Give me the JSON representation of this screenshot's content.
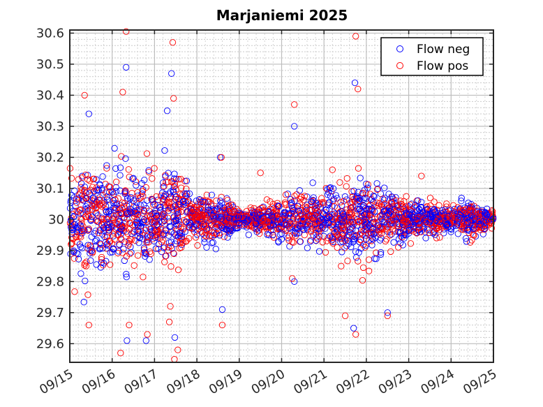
{
  "chart_data": {
    "type": "scatter",
    "title": "Marjaniemi 2025",
    "xlabel": "",
    "ylabel": "",
    "x_tick_labels": [
      "09/15",
      "09/16",
      "09/17",
      "09/18",
      "09/19",
      "09/20",
      "09/21",
      "09/22",
      "09/23",
      "09/24",
      "09/25"
    ],
    "x_ticks_days": [
      15,
      16,
      17,
      18,
      19,
      20,
      21,
      22,
      23,
      24,
      25
    ],
    "xlim_days": [
      15,
      25
    ],
    "y_tick_labels": [
      "29.6",
      "29.7",
      "29.8",
      "29.9",
      "30",
      "30.1",
      "30.2",
      "30.3",
      "30.4",
      "30.5",
      "30.6"
    ],
    "y_ticks": [
      29.6,
      29.7,
      29.8,
      29.9,
      30.0,
      30.1,
      30.2,
      30.3,
      30.4,
      30.5,
      30.6
    ],
    "ylim": [
      29.54,
      30.61
    ],
    "grid": true,
    "minor_grid": true,
    "legend_position": "top-right",
    "marker": "open-circle",
    "mean_value": 30.0,
    "series": [
      {
        "name": "Flow neg",
        "color": "#0000ff"
      },
      {
        "name": "Flow pos",
        "color": "#ff0000"
      }
    ],
    "spread_profile": {
      "day": [
        15.0,
        15.5,
        16.0,
        16.3,
        16.5,
        17.0,
        17.3,
        17.5,
        18.0,
        18.5,
        19.0,
        19.5,
        20.0,
        20.5,
        21.0,
        21.5,
        22.0,
        22.5,
        23.0,
        23.5,
        24.0,
        24.5,
        25.0
      ],
      "std": [
        0.06,
        0.09,
        0.07,
        0.095,
        0.08,
        0.06,
        0.09,
        0.07,
        0.035,
        0.04,
        0.012,
        0.022,
        0.03,
        0.04,
        0.035,
        0.055,
        0.06,
        0.045,
        0.03,
        0.025,
        0.018,
        0.03,
        0.012
      ]
    },
    "outliers": [
      {
        "series": "Flow pos",
        "x_day": 16.33,
        "y": 30.605
      },
      {
        "series": "Flow pos",
        "x_day": 17.43,
        "y": 30.57
      },
      {
        "series": "Flow pos",
        "x_day": 21.75,
        "y": 30.59
      },
      {
        "series": "Flow neg",
        "x_day": 16.33,
        "y": 30.49
      },
      {
        "series": "Flow neg",
        "x_day": 17.4,
        "y": 30.47
      },
      {
        "series": "Flow neg",
        "x_day": 21.73,
        "y": 30.44
      },
      {
        "series": "Flow pos",
        "x_day": 15.35,
        "y": 30.4
      },
      {
        "series": "Flow pos",
        "x_day": 16.25,
        "y": 30.41
      },
      {
        "series": "Flow pos",
        "x_day": 17.45,
        "y": 30.39
      },
      {
        "series": "Flow pos",
        "x_day": 21.8,
        "y": 30.42
      },
      {
        "series": "Flow pos",
        "x_day": 20.3,
        "y": 30.37
      },
      {
        "series": "Flow neg",
        "x_day": 20.3,
        "y": 30.3
      },
      {
        "series": "Flow neg",
        "x_day": 15.45,
        "y": 30.34
      },
      {
        "series": "Flow neg",
        "x_day": 17.3,
        "y": 30.35
      },
      {
        "series": "Flow pos",
        "x_day": 16.2,
        "y": 29.57
      },
      {
        "series": "Flow neg",
        "x_day": 16.35,
        "y": 29.61
      },
      {
        "series": "Flow pos",
        "x_day": 17.47,
        "y": 29.55
      },
      {
        "series": "Flow neg",
        "x_day": 17.48,
        "y": 29.62
      },
      {
        "series": "Flow pos",
        "x_day": 17.55,
        "y": 29.58
      },
      {
        "series": "Flow neg",
        "x_day": 16.8,
        "y": 29.61
      },
      {
        "series": "Flow pos",
        "x_day": 16.83,
        "y": 29.63
      },
      {
        "series": "Flow pos",
        "x_day": 21.75,
        "y": 29.63
      },
      {
        "series": "Flow neg",
        "x_day": 21.7,
        "y": 29.65
      },
      {
        "series": "Flow pos",
        "x_day": 15.45,
        "y": 29.66
      },
      {
        "series": "Flow pos",
        "x_day": 16.4,
        "y": 29.66
      },
      {
        "series": "Flow pos",
        "x_day": 17.35,
        "y": 29.67
      },
      {
        "series": "Flow pos",
        "x_day": 18.6,
        "y": 29.66
      },
      {
        "series": "Flow neg",
        "x_day": 18.6,
        "y": 29.71
      },
      {
        "series": "Flow pos",
        "x_day": 21.5,
        "y": 29.69
      },
      {
        "series": "Flow neg",
        "x_day": 22.5,
        "y": 29.7
      },
      {
        "series": "Flow pos",
        "x_day": 22.5,
        "y": 29.69
      },
      {
        "series": "Flow neg",
        "x_day": 18.55,
        "y": 30.2
      },
      {
        "series": "Flow pos",
        "x_day": 18.58,
        "y": 30.2
      },
      {
        "series": "Flow pos",
        "x_day": 19.5,
        "y": 30.15
      },
      {
        "series": "Flow pos",
        "x_day": 21.2,
        "y": 30.16
      },
      {
        "series": "Flow pos",
        "x_day": 23.3,
        "y": 30.14
      },
      {
        "series": "Flow neg",
        "x_day": 20.3,
        "y": 29.8
      },
      {
        "series": "Flow pos",
        "x_day": 20.25,
        "y": 29.81
      },
      {
        "series": "Flow neg",
        "x_day": 22.9,
        "y": 29.95
      }
    ]
  },
  "legend": {
    "flow_neg_label": "Flow neg",
    "flow_pos_label": "Flow pos"
  }
}
